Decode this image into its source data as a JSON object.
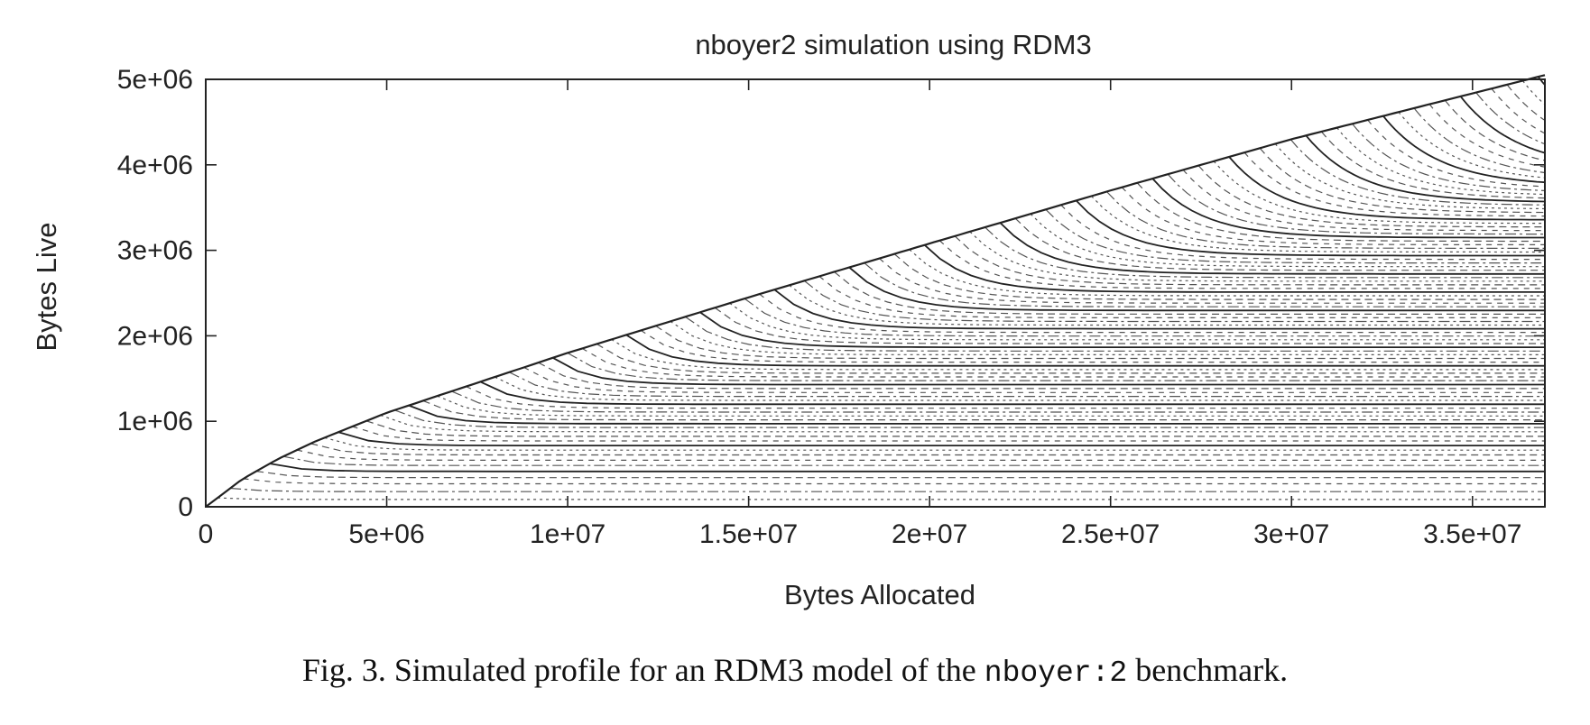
{
  "chart_data": {
    "type": "line",
    "title": "nboyer2 simulation using RDM3",
    "xlabel": "Bytes Allocated",
    "ylabel": "Bytes Live",
    "xlim": [
      0,
      37000000
    ],
    "ylim": [
      0,
      5000000
    ],
    "x_ticks": [
      {
        "value": 0,
        "label": "0"
      },
      {
        "value": 5000000,
        "label": "5e+06"
      },
      {
        "value": 10000000,
        "label": "1e+07"
      },
      {
        "value": 15000000,
        "label": "1.5e+07"
      },
      {
        "value": 20000000,
        "label": "2e+07"
      },
      {
        "value": 25000000,
        "label": "2.5e+07"
      },
      {
        "value": 30000000,
        "label": "3e+07"
      },
      {
        "value": 35000000,
        "label": "3.5e+07"
      }
    ],
    "y_ticks": [
      {
        "value": 0,
        "label": "0"
      },
      {
        "value": 1000000,
        "label": "1e+06"
      },
      {
        "value": 2000000,
        "label": "2e+06"
      },
      {
        "value": 3000000,
        "label": "3e+06"
      },
      {
        "value": 4000000,
        "label": "4e+06"
      },
      {
        "value": 5000000,
        "label": "5e+06"
      }
    ],
    "envelope": {
      "x": [
        0,
        1000000,
        2000000,
        3000000,
        5000000,
        7000000,
        10000000,
        15000000,
        20000000,
        25000000,
        30000000,
        37000000
      ],
      "y": [
        0,
        320000,
        560000,
        760000,
        1100000,
        1380000,
        1800000,
        2450000,
        3080000,
        3700000,
        4300000,
        5050000
      ]
    },
    "cohorts": {
      "count": 90,
      "solid_every": 5,
      "line_color": "#555555",
      "solid_color": "#222222",
      "final_live_fraction": 0.82
    },
    "grid": false,
    "legend": "none"
  },
  "caption": {
    "prefix": "Fig. 3. Simulated profile for an RDM3 model of the ",
    "code": "nboyer:2",
    "suffix": " benchmark."
  }
}
